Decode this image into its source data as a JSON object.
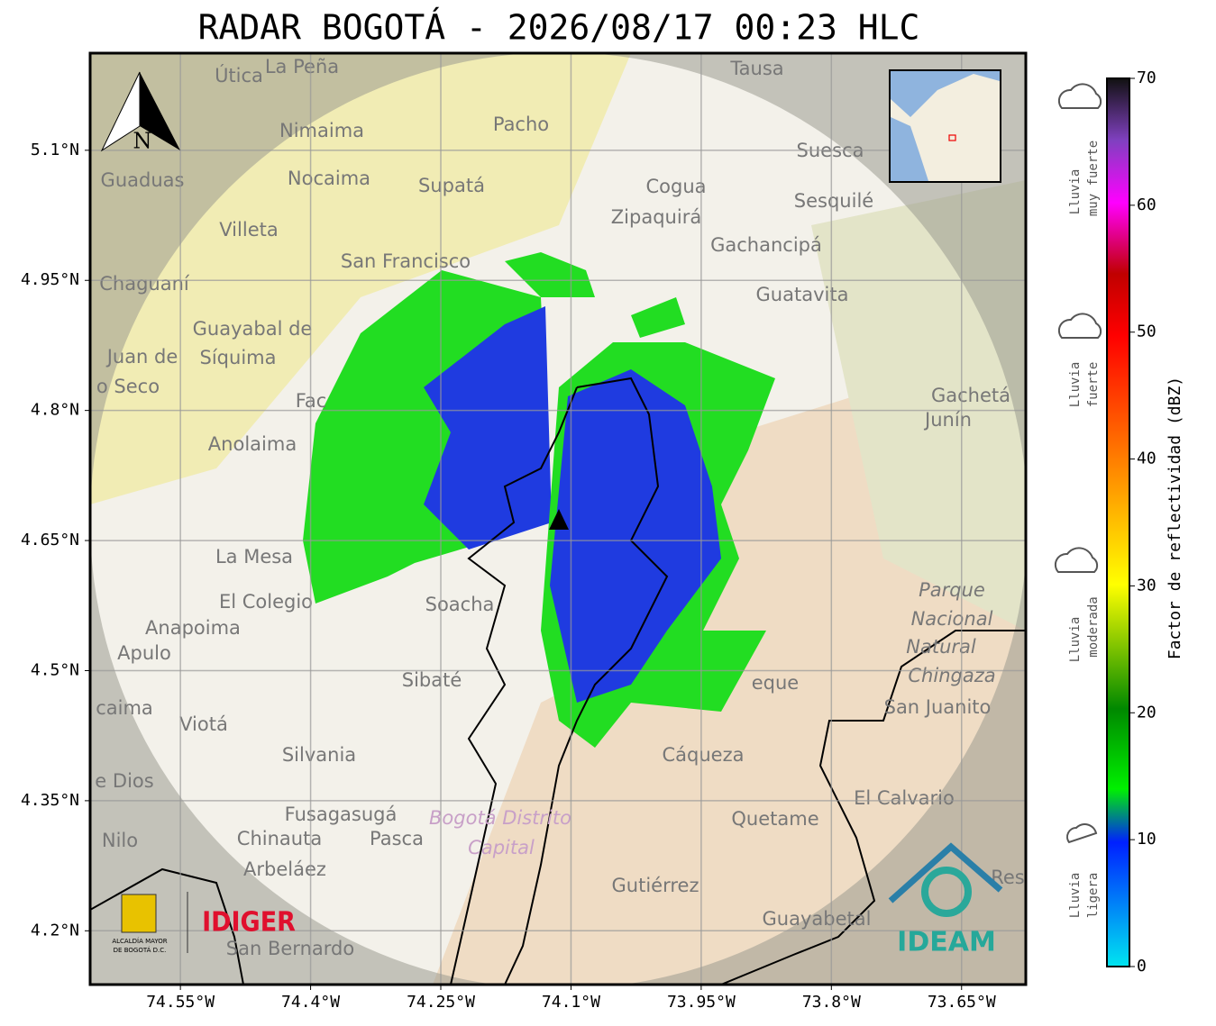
{
  "header": {
    "title": "RADAR BOGOTÁ - 2026/08/17 00:23 HLC"
  },
  "map": {
    "xlim": [
      -74.654,
      -73.576
    ],
    "ylim": [
      4.138,
      5.212
    ],
    "xticks": [
      {
        "value": -74.55,
        "label": "74.55°W"
      },
      {
        "value": -74.4,
        "label": "74.4°W"
      },
      {
        "value": -74.25,
        "label": "74.25°W"
      },
      {
        "value": -74.1,
        "label": "74.1°W"
      },
      {
        "value": -73.95,
        "label": "73.95°W"
      },
      {
        "value": -73.8,
        "label": "73.8°W"
      },
      {
        "value": -73.65,
        "label": "73.65°W"
      }
    ],
    "yticks": [
      {
        "value": 5.1,
        "label": "5.1°N"
      },
      {
        "value": 4.95,
        "label": "4.95°N"
      },
      {
        "value": 4.8,
        "label": "4.8°N"
      },
      {
        "value": 4.65,
        "label": "4.65°N"
      },
      {
        "value": 4.5,
        "label": "4.5°N"
      },
      {
        "value": 4.35,
        "label": "4.35°N"
      },
      {
        "value": 4.2,
        "label": "4.2°N"
      }
    ],
    "grid": true,
    "north": "N",
    "places": [
      "Útica",
      "La Peña",
      "Tausa",
      "Pacho",
      "Nimaima",
      "Suesca",
      "Guaduas",
      "Nocaima",
      "Supatá",
      "Cogua",
      "Zipaquirá",
      "Sesquilé",
      "Villeta",
      "Gachancipá",
      "San Francisco",
      "Chaguaní",
      "Guatavita",
      "Guayabal de",
      "Síquima",
      "Juan de",
      "o Seco",
      "Gachetá",
      "Junín",
      "Anolaima",
      "La Mesa",
      "El Colegio",
      "Soacha",
      "Anapoima",
      "Apulo",
      "Parque",
      "Nacional",
      "Natural",
      "Chingaza",
      "Sibaté",
      "San Juanito",
      "caima",
      "Viotá",
      "Cáqueza",
      "Silvania",
      "e Dios",
      "El Calvario",
      "Fusagasugá",
      "Bogotá Distrito",
      "Capital",
      "Quetame",
      "Nilo",
      "Chinauta",
      "Pasca",
      "Arbeláez",
      "Gutiérrez",
      "Res",
      "Guayabetal",
      "San Bernardo",
      "Fac",
      "eque"
    ]
  },
  "colorbar": {
    "label": "Factor de reflectividad (dBZ)",
    "lim": [
      0,
      70
    ],
    "ticks": [
      0,
      10,
      20,
      30,
      40,
      50,
      60,
      70
    ]
  },
  "rain_levels": [
    {
      "lines": [
        "Lluvia",
        "muy fuerte"
      ]
    },
    {
      "lines": [
        "Lluvia",
        "fuerte"
      ]
    },
    {
      "lines": [
        "Lluvia",
        "moderada"
      ]
    },
    {
      "lines": [
        "Lluvia",
        "ligera"
      ]
    }
  ],
  "logos": {
    "alcaldia": [
      "ALCALDÍA MAYOR",
      "DE BOGOTÁ D.C."
    ],
    "idiger": "IDIGER",
    "ideam": "IDEAM"
  }
}
